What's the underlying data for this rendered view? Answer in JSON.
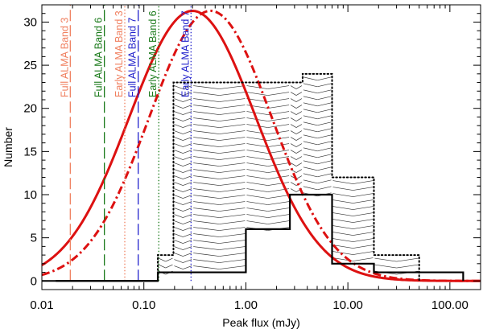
{
  "chart_data": {
    "type": "line",
    "title": "",
    "xlabel": "Peak flux (mJy)",
    "ylabel": "Number",
    "xscale": "log",
    "xlim": [
      0.01,
      200
    ],
    "ylim": [
      -1,
      32
    ],
    "grid": false,
    "x_ticks": [
      0.01,
      0.1,
      1,
      10,
      100
    ],
    "x_tick_labels": [
      "0.01",
      "0.10",
      "1.00",
      "10.00",
      "100.00"
    ],
    "y_ticks": [
      0,
      5,
      10,
      15,
      20,
      25,
      30
    ],
    "y_tick_labels": [
      "0",
      "5",
      "10",
      "15",
      "20",
      "25",
      "30"
    ],
    "histograms": [
      {
        "name": "detected",
        "style": "solid",
        "color": "#000000",
        "edges": [
          0.0137,
          0.137,
          0.3,
          1.0,
          2.7,
          7.0,
          18.0,
          50.0,
          135.0
        ],
        "counts": [
          0,
          1,
          1,
          6,
          10,
          2,
          1,
          1
        ]
      },
      {
        "name": "upper envelope",
        "style": "dotted",
        "color": "#000000",
        "edges": [
          0.137,
          0.195,
          0.3,
          2.7,
          3.6,
          7.0,
          18.0,
          50.0
        ],
        "counts": [
          3,
          23,
          23,
          23,
          24,
          12,
          3
        ]
      }
    ],
    "curves": [
      {
        "name": "solid lognormal fit",
        "style": "solid",
        "color": "#dd1111",
        "peak_x": 0.3,
        "peak_y": 31.3,
        "log_sigma": 0.62
      },
      {
        "name": "dash-dot lognormal fit",
        "style": "dashdot",
        "color": "#dd1111",
        "peak_x": 0.45,
        "peak_y": 31.3,
        "log_sigma": 0.6
      }
    ],
    "vlines": [
      {
        "x": 0.019,
        "label": "Full ALMA Band 3",
        "color": "#f08060",
        "style": "dashed"
      },
      {
        "x": 0.041,
        "label": "Full ALMA Band 6",
        "color": "#1a7a1a",
        "style": "dashed"
      },
      {
        "x": 0.065,
        "label": "Early ALMA Band 3",
        "color": "#f08060",
        "style": "dotted"
      },
      {
        "x": 0.088,
        "label": "Full ALMA Band 7",
        "color": "#2222cc",
        "style": "dashed"
      },
      {
        "x": 0.14,
        "label": "Early ALMA Band 6",
        "color": "#1a7a1a",
        "style": "dotted"
      },
      {
        "x": 0.29,
        "label": "Early ALMA Band 7",
        "color": "#2222cc",
        "style": "dotted"
      }
    ]
  }
}
